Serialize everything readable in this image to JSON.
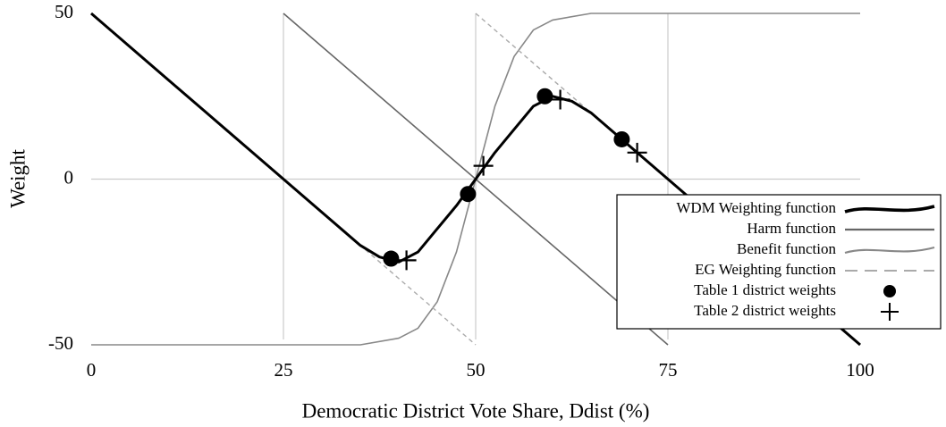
{
  "chart_data": {
    "type": "line",
    "xlabel": "Democratic District Vote Share, Ddist (%)",
    "ylabel": "Weight",
    "xlim": [
      0,
      100
    ],
    "ylim": [
      -50,
      50
    ],
    "xticks": [
      0,
      25,
      50,
      75,
      100
    ],
    "yticks": [
      -50,
      0,
      50
    ],
    "grid": true,
    "legend": "lower right",
    "series": [
      {
        "name": "WDM Weighting function",
        "color": "#000000",
        "x": [
          0,
          5,
          10,
          15,
          20,
          25,
          30,
          35,
          37.5,
          40,
          42.5,
          45,
          47.5,
          50,
          52.5,
          55,
          57.5,
          60,
          62.5,
          65,
          70,
          75,
          100
        ],
        "values": [
          50,
          40,
          30,
          20,
          10,
          0,
          -10,
          -20,
          -23.5,
          -25,
          -22,
          -15,
          -8,
          0,
          8,
          15,
          22,
          25,
          23.5,
          20,
          10,
          0,
          -50
        ]
      },
      {
        "name": "Harm function",
        "color": "#666666",
        "x": [
          25,
          75
        ],
        "values": [
          50,
          -50
        ]
      },
      {
        "name": "Benefit function",
        "color": "#888888",
        "x": [
          0,
          35,
          40,
          42.5,
          45,
          47.5,
          50,
          52.5,
          55,
          57.5,
          60,
          65,
          100
        ],
        "values": [
          -50,
          -50,
          -48,
          -45,
          -37,
          -22,
          0,
          22,
          37,
          45,
          48,
          50,
          50
        ]
      },
      {
        "name": "EG Weighting function",
        "color": "#aaaaaa",
        "x": [
          0,
          50,
          50,
          50,
          100
        ],
        "values": [
          50,
          -50,
          null,
          50,
          -50
        ]
      },
      {
        "name": "Table 1 district weights",
        "color": "#000000",
        "marker": "circle",
        "x": [
          39,
          49,
          59,
          69
        ],
        "values": [
          -24,
          -4.5,
          25,
          12
        ]
      },
      {
        "name": "Table 2 district weights",
        "color": "#000000",
        "marker": "plus",
        "x": [
          41,
          51,
          61,
          71
        ],
        "values": [
          -24.5,
          4,
          24,
          8
        ]
      }
    ]
  }
}
